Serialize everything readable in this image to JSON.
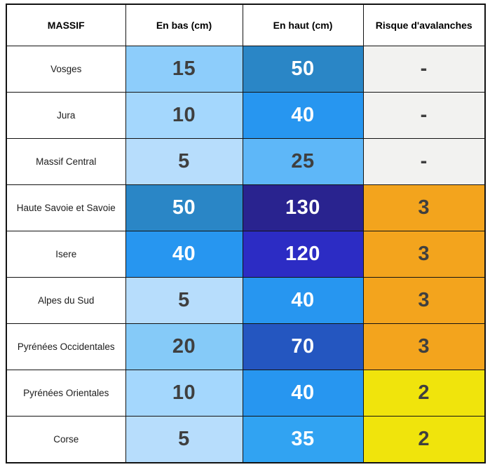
{
  "chart_data": {
    "type": "table",
    "title": "",
    "columns": [
      "MASSIF",
      "En bas (cm)",
      "En haut (cm)",
      "Risque d'avalanches"
    ],
    "rows": [
      [
        "Vosges",
        15,
        50,
        "-"
      ],
      [
        "Jura",
        10,
        40,
        "-"
      ],
      [
        "Massif Central",
        5,
        25,
        "-"
      ],
      [
        "Haute Savoie et Savoie",
        50,
        130,
        3
      ],
      [
        "Isere",
        40,
        120,
        3
      ],
      [
        "Alpes du Sud",
        5,
        40,
        3
      ],
      [
        "Pyrénées Occidentales",
        20,
        70,
        3
      ],
      [
        "Pyrénées Orientales",
        10,
        40,
        2
      ],
      [
        "Corse",
        5,
        35,
        2
      ]
    ]
  },
  "colors": {
    "border": "#121212",
    "risk_3_orange": "#F3A41D",
    "risk_2_yellow": "#F0E40C",
    "risk_none_gray": "#F2F2F0",
    "dark_text": "#3F3F3F",
    "white_text": "#FFFFFF"
  },
  "table": {
    "headers": [
      "MASSIF",
      "En bas (cm)",
      "En haut (cm)",
      "Risque d'avalanches"
    ],
    "rows": [
      {
        "massif": "Vosges",
        "bas": {
          "value": "15",
          "bg": "#8DCDFB",
          "fg": "#3F3F3F"
        },
        "haut": {
          "value": "50",
          "bg": "#2A86C6",
          "fg": "#FFFFFF"
        },
        "risque": {
          "value": "-",
          "bg": "#F2F2F0",
          "fg": "#3F3F3F"
        }
      },
      {
        "massif": "Jura",
        "bas": {
          "value": "10",
          "bg": "#A4D7FD",
          "fg": "#3F3F3F"
        },
        "haut": {
          "value": "40",
          "bg": "#2796F0",
          "fg": "#FFFFFF"
        },
        "risque": {
          "value": "-",
          "bg": "#F2F2F0",
          "fg": "#3F3F3F"
        }
      },
      {
        "massif": "Massif Central",
        "bas": {
          "value": "5",
          "bg": "#B7DDFC",
          "fg": "#3F3F3F"
        },
        "haut": {
          "value": "25",
          "bg": "#5EB7F8",
          "fg": "#3F3F3F"
        },
        "risque": {
          "value": "-",
          "bg": "#F2F2F0",
          "fg": "#3F3F3F"
        }
      },
      {
        "massif": "Haute Savoie et Savoie",
        "bas": {
          "value": "50",
          "bg": "#2A86C6",
          "fg": "#FFFFFF"
        },
        "haut": {
          "value": "130",
          "bg": "#29238F",
          "fg": "#FFFFFF"
        },
        "risque": {
          "value": "3",
          "bg": "#F3A41D",
          "fg": "#3F3F3F"
        }
      },
      {
        "massif": "Isere",
        "bas": {
          "value": "40",
          "bg": "#2796F0",
          "fg": "#FFFFFF"
        },
        "haut": {
          "value": "120",
          "bg": "#2C2CC4",
          "fg": "#FFFFFF"
        },
        "risque": {
          "value": "3",
          "bg": "#F3A41D",
          "fg": "#3F3F3F"
        }
      },
      {
        "massif": "Alpes du Sud",
        "bas": {
          "value": "5",
          "bg": "#B7DDFC",
          "fg": "#3F3F3F"
        },
        "haut": {
          "value": "40",
          "bg": "#2796F0",
          "fg": "#FFFFFF"
        },
        "risque": {
          "value": "3",
          "bg": "#F3A41D",
          "fg": "#3F3F3F"
        }
      },
      {
        "massif": "Pyrénées Occidentales",
        "bas": {
          "value": "20",
          "bg": "#85CAF8",
          "fg": "#3F3F3F"
        },
        "haut": {
          "value": "70",
          "bg": "#2456C0",
          "fg": "#FFFFFF"
        },
        "risque": {
          "value": "3",
          "bg": "#F3A41D",
          "fg": "#3F3F3F"
        }
      },
      {
        "massif": "Pyrénées Orientales",
        "bas": {
          "value": "10",
          "bg": "#A4D7FD",
          "fg": "#3F3F3F"
        },
        "haut": {
          "value": "40",
          "bg": "#2796F0",
          "fg": "#FFFFFF"
        },
        "risque": {
          "value": "2",
          "bg": "#F0E40C",
          "fg": "#3F3F3F"
        }
      },
      {
        "massif": "Corse",
        "bas": {
          "value": "5",
          "bg": "#B7DDFC",
          "fg": "#3F3F3F"
        },
        "haut": {
          "value": "35",
          "bg": "#31A3F2",
          "fg": "#FFFFFF"
        },
        "risque": {
          "value": "2",
          "bg": "#F0E40C",
          "fg": "#3F3F3F"
        }
      }
    ]
  }
}
